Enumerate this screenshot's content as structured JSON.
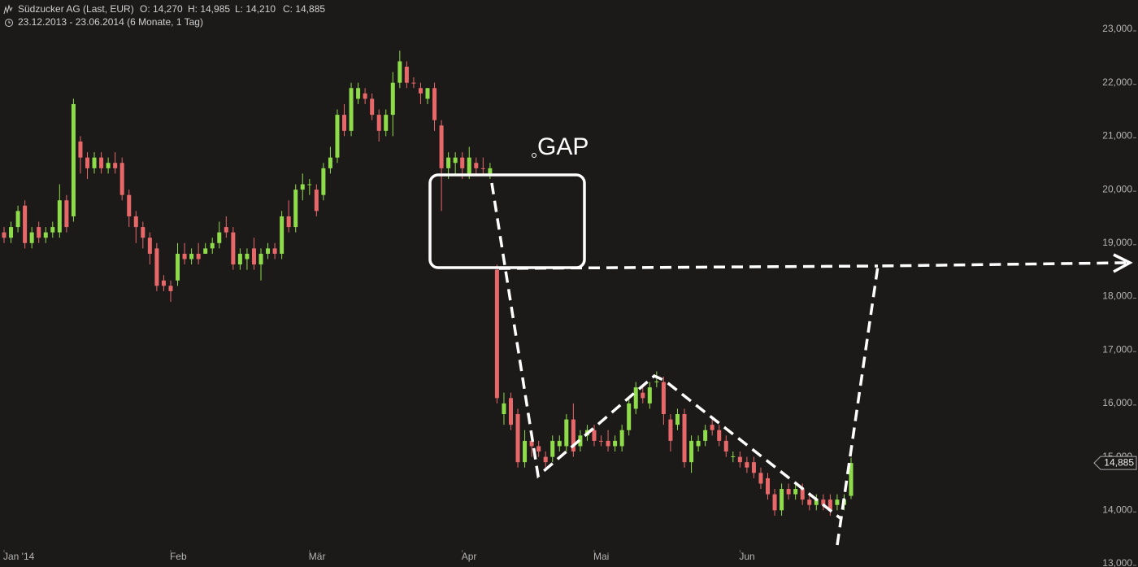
{
  "chart_data": {
    "type": "candlestick",
    "header": {
      "title": "Südzucker AG (Last, EUR)",
      "ohlc": [
        "O: 14,270",
        "H: 14,985",
        "L: 14,210",
        "C: 14,885"
      ],
      "range": "23.12.2013 - 23.06.2014 (6 Monate, 1 Tag)"
    },
    "annotation": "GAP",
    "last_price": {
      "value": 14.885,
      "label": "14,885"
    },
    "up_color": "#8fdc4a",
    "down_color": "#e8686a",
    "ylim": [
      13,
      23
    ],
    "yticks": [
      {
        "value": 13,
        "label": "13,000"
      },
      {
        "value": 14,
        "label": "14,000"
      },
      {
        "value": 15,
        "label": "15,000"
      },
      {
        "value": 16,
        "label": "16,000"
      },
      {
        "value": 17,
        "label": "17,000"
      },
      {
        "value": 18,
        "label": "18,000"
      },
      {
        "value": 19,
        "label": "19,000"
      },
      {
        "value": 20,
        "label": "20,000"
      },
      {
        "value": 21,
        "label": "21,000"
      },
      {
        "value": 22,
        "label": "22,000"
      },
      {
        "value": 23,
        "label": "23,000"
      }
    ],
    "categories": [
      "Jan '14",
      null,
      null,
      null,
      null,
      null,
      null,
      null,
      null,
      null,
      null,
      null,
      null,
      null,
      null,
      null,
      null,
      null,
      null,
      null,
      null,
      null,
      null,
      null,
      "Feb",
      null,
      null,
      null,
      null,
      null,
      null,
      null,
      null,
      null,
      null,
      null,
      null,
      null,
      null,
      null,
      null,
      null,
      null,
      null,
      "Mär",
      null,
      null,
      null,
      null,
      null,
      null,
      null,
      null,
      null,
      null,
      null,
      null,
      null,
      null,
      null,
      null,
      null,
      null,
      null,
      null,
      null,
      "Apr",
      null,
      null,
      null,
      null,
      null,
      null,
      null,
      null,
      null,
      null,
      null,
      null,
      null,
      null,
      null,
      null,
      null,
      null,
      "Mai",
      null,
      null,
      null,
      null,
      null,
      null,
      null,
      null,
      null,
      null,
      null,
      null,
      null,
      null,
      null,
      null,
      null,
      null,
      null,
      null,
      "Jun",
      null,
      null,
      null,
      null,
      null,
      null,
      null,
      null,
      null,
      null,
      null,
      null,
      null,
      null,
      null,
      null
    ],
    "candles": [
      [
        19.2,
        19.3,
        19.0,
        19.1
      ],
      [
        19.1,
        19.4,
        19.0,
        19.3
      ],
      [
        19.3,
        19.7,
        19.2,
        19.6
      ],
      [
        19.7,
        19.8,
        18.9,
        19.0
      ],
      [
        19.0,
        19.3,
        18.9,
        19.2
      ],
      [
        19.3,
        19.4,
        19.0,
        19.1
      ],
      [
        19.1,
        19.3,
        19.0,
        19.2
      ],
      [
        19.2,
        19.4,
        19.1,
        19.3
      ],
      [
        19.2,
        20.1,
        19.1,
        19.8
      ],
      [
        19.8,
        19.9,
        19.2,
        19.3
      ],
      [
        19.5,
        21.7,
        19.4,
        21.6
      ],
      [
        20.9,
        21.0,
        20.3,
        20.6
      ],
      [
        20.6,
        20.7,
        20.2,
        20.4
      ],
      [
        20.4,
        20.7,
        20.3,
        20.6
      ],
      [
        20.6,
        20.7,
        20.3,
        20.4
      ],
      [
        20.4,
        20.6,
        20.3,
        20.5
      ],
      [
        20.5,
        20.7,
        20.3,
        20.4
      ],
      [
        20.5,
        20.6,
        19.8,
        19.9
      ],
      [
        19.9,
        20.0,
        19.3,
        19.5
      ],
      [
        19.5,
        19.6,
        19.0,
        19.3
      ],
      [
        19.3,
        19.4,
        18.9,
        19.1
      ],
      [
        19.1,
        19.2,
        18.6,
        18.8
      ],
      [
        18.9,
        19.0,
        18.1,
        18.2
      ],
      [
        18.3,
        18.4,
        18.1,
        18.2
      ],
      [
        18.2,
        18.3,
        17.9,
        18.1
      ],
      [
        18.3,
        19.0,
        18.2,
        18.8
      ],
      [
        18.8,
        19.0,
        18.6,
        18.7
      ],
      [
        18.7,
        18.9,
        18.6,
        18.8
      ],
      [
        18.8,
        19.0,
        18.6,
        18.7
      ],
      [
        18.8,
        19.0,
        18.8,
        18.9
      ],
      [
        18.9,
        19.1,
        18.8,
        19.0
      ],
      [
        19.0,
        19.4,
        18.9,
        19.2
      ],
      [
        19.3,
        19.5,
        19.1,
        19.2
      ],
      [
        19.2,
        19.3,
        18.5,
        18.6
      ],
      [
        18.6,
        18.9,
        18.5,
        18.8
      ],
      [
        18.7,
        18.9,
        18.5,
        18.8
      ],
      [
        18.9,
        19.1,
        18.5,
        18.6
      ],
      [
        18.6,
        18.9,
        18.3,
        18.8
      ],
      [
        18.8,
        19.0,
        18.7,
        18.9
      ],
      [
        18.9,
        19.0,
        18.7,
        18.8
      ],
      [
        18.8,
        19.6,
        18.7,
        19.5
      ],
      [
        19.5,
        19.8,
        19.2,
        19.3
      ],
      [
        19.3,
        20.1,
        19.2,
        20.0
      ],
      [
        20.0,
        20.3,
        19.8,
        20.1
      ],
      [
        20.1,
        20.2,
        19.9,
        20.1
      ],
      [
        20.0,
        20.1,
        19.5,
        19.6
      ],
      [
        19.9,
        20.5,
        19.8,
        20.4
      ],
      [
        20.4,
        20.8,
        20.3,
        20.6
      ],
      [
        20.6,
        21.5,
        20.5,
        21.4
      ],
      [
        21.4,
        21.6,
        21.0,
        21.1
      ],
      [
        21.1,
        22.0,
        21.0,
        21.9
      ],
      [
        21.7,
        22.0,
        21.6,
        21.9
      ],
      [
        21.8,
        21.9,
        21.6,
        21.7
      ],
      [
        21.7,
        21.8,
        21.3,
        21.4
      ],
      [
        21.4,
        21.5,
        20.9,
        21.1
      ],
      [
        21.1,
        21.5,
        21.0,
        21.4
      ],
      [
        21.4,
        22.2,
        21.0,
        22.0
      ],
      [
        22.0,
        22.6,
        21.9,
        22.4
      ],
      [
        22.3,
        22.4,
        21.9,
        22.0
      ],
      [
        22.0,
        22.1,
        21.9,
        21.99
      ],
      [
        21.9,
        22.0,
        21.6,
        21.8
      ],
      [
        21.7,
        21.9,
        21.6,
        21.9
      ],
      [
        21.9,
        22.0,
        21.1,
        21.3
      ],
      [
        21.2,
        21.3,
        19.6,
        20.4
      ],
      [
        20.4,
        20.7,
        20.2,
        20.6
      ],
      [
        20.5,
        20.7,
        20.3,
        20.6
      ],
      [
        20.6,
        20.7,
        20.2,
        20.4
      ],
      [
        20.3,
        20.8,
        20.2,
        20.6
      ],
      [
        20.5,
        20.6,
        20.3,
        20.4
      ],
      [
        20.4,
        20.6,
        20.3,
        20.39
      ],
      [
        20.3,
        20.5,
        20.2,
        20.4
      ],
      [
        18.5,
        18.6,
        16.0,
        16.1
      ],
      [
        15.8,
        16.2,
        15.6,
        16.0
      ],
      [
        16.1,
        16.2,
        15.5,
        15.6
      ],
      [
        15.8,
        15.9,
        14.8,
        14.9
      ],
      [
        14.9,
        15.5,
        14.8,
        15.3
      ],
      [
        15.3,
        15.4,
        15.0,
        15.2
      ],
      [
        15.2,
        15.3,
        15.0,
        15.1
      ],
      [
        15.0,
        15.1,
        14.8,
        14.9
      ],
      [
        15.0,
        15.4,
        14.9,
        15.3
      ],
      [
        15.2,
        15.4,
        15.1,
        15.3
      ],
      [
        15.2,
        15.8,
        15.1,
        15.7
      ],
      [
        15.7,
        16.0,
        15.0,
        15.1
      ],
      [
        15.2,
        15.5,
        15.1,
        15.4
      ],
      [
        15.4,
        15.6,
        15.3,
        15.5
      ],
      [
        15.5,
        15.6,
        15.2,
        15.3
      ],
      [
        15.3,
        15.4,
        15.2,
        15.29
      ],
      [
        15.3,
        15.5,
        15.1,
        15.2
      ],
      [
        15.2,
        15.4,
        15.1,
        15.3
      ],
      [
        15.2,
        15.6,
        15.1,
        15.5
      ],
      [
        15.5,
        16.1,
        15.4,
        16.0
      ],
      [
        15.9,
        16.4,
        15.8,
        16.3
      ],
      [
        16.2,
        16.3,
        16.0,
        16.1
      ],
      [
        16.0,
        16.4,
        15.9,
        16.3
      ],
      [
        16.4,
        16.6,
        16.3,
        16.41
      ],
      [
        16.4,
        16.5,
        15.6,
        15.8
      ],
      [
        15.7,
        15.8,
        15.1,
        15.3
      ],
      [
        15.6,
        15.9,
        15.5,
        15.8
      ],
      [
        15.8,
        15.9,
        14.8,
        14.9
      ],
      [
        14.9,
        15.4,
        14.7,
        15.3
      ],
      [
        15.2,
        15.4,
        15.1,
        15.3
      ],
      [
        15.3,
        15.6,
        15.2,
        15.5
      ],
      [
        15.6,
        15.7,
        15.4,
        15.5
      ],
      [
        15.5,
        15.6,
        15.2,
        15.3
      ],
      [
        15.3,
        15.4,
        15.0,
        15.1
      ],
      [
        15.0,
        15.1,
        14.9,
        15.01
      ],
      [
        15.0,
        15.1,
        14.8,
        14.9
      ],
      [
        14.9,
        15.0,
        14.7,
        14.8
      ],
      [
        14.9,
        15.0,
        14.6,
        14.7
      ],
      [
        14.7,
        14.8,
        14.4,
        14.5
      ],
      [
        14.6,
        14.7,
        14.2,
        14.3
      ],
      [
        14.3,
        14.4,
        13.9,
        14.0
      ],
      [
        14.0,
        14.5,
        13.9,
        14.4
      ],
      [
        14.4,
        14.5,
        14.2,
        14.3
      ],
      [
        14.3,
        14.5,
        14.2,
        14.4
      ],
      [
        14.4,
        14.5,
        14.1,
        14.2
      ],
      [
        14.2,
        14.3,
        14.0,
        14.1
      ],
      [
        14.1,
        14.3,
        14.0,
        14.2
      ],
      [
        14.2,
        14.3,
        14.0,
        14.1
      ],
      [
        14.2,
        14.3,
        13.9,
        14.0
      ],
      [
        14.1,
        14.3,
        14.0,
        14.2
      ],
      [
        14.1,
        14.3,
        14.0,
        14.2
      ],
      [
        14.27,
        14.985,
        14.21,
        14.885
      ]
    ]
  }
}
